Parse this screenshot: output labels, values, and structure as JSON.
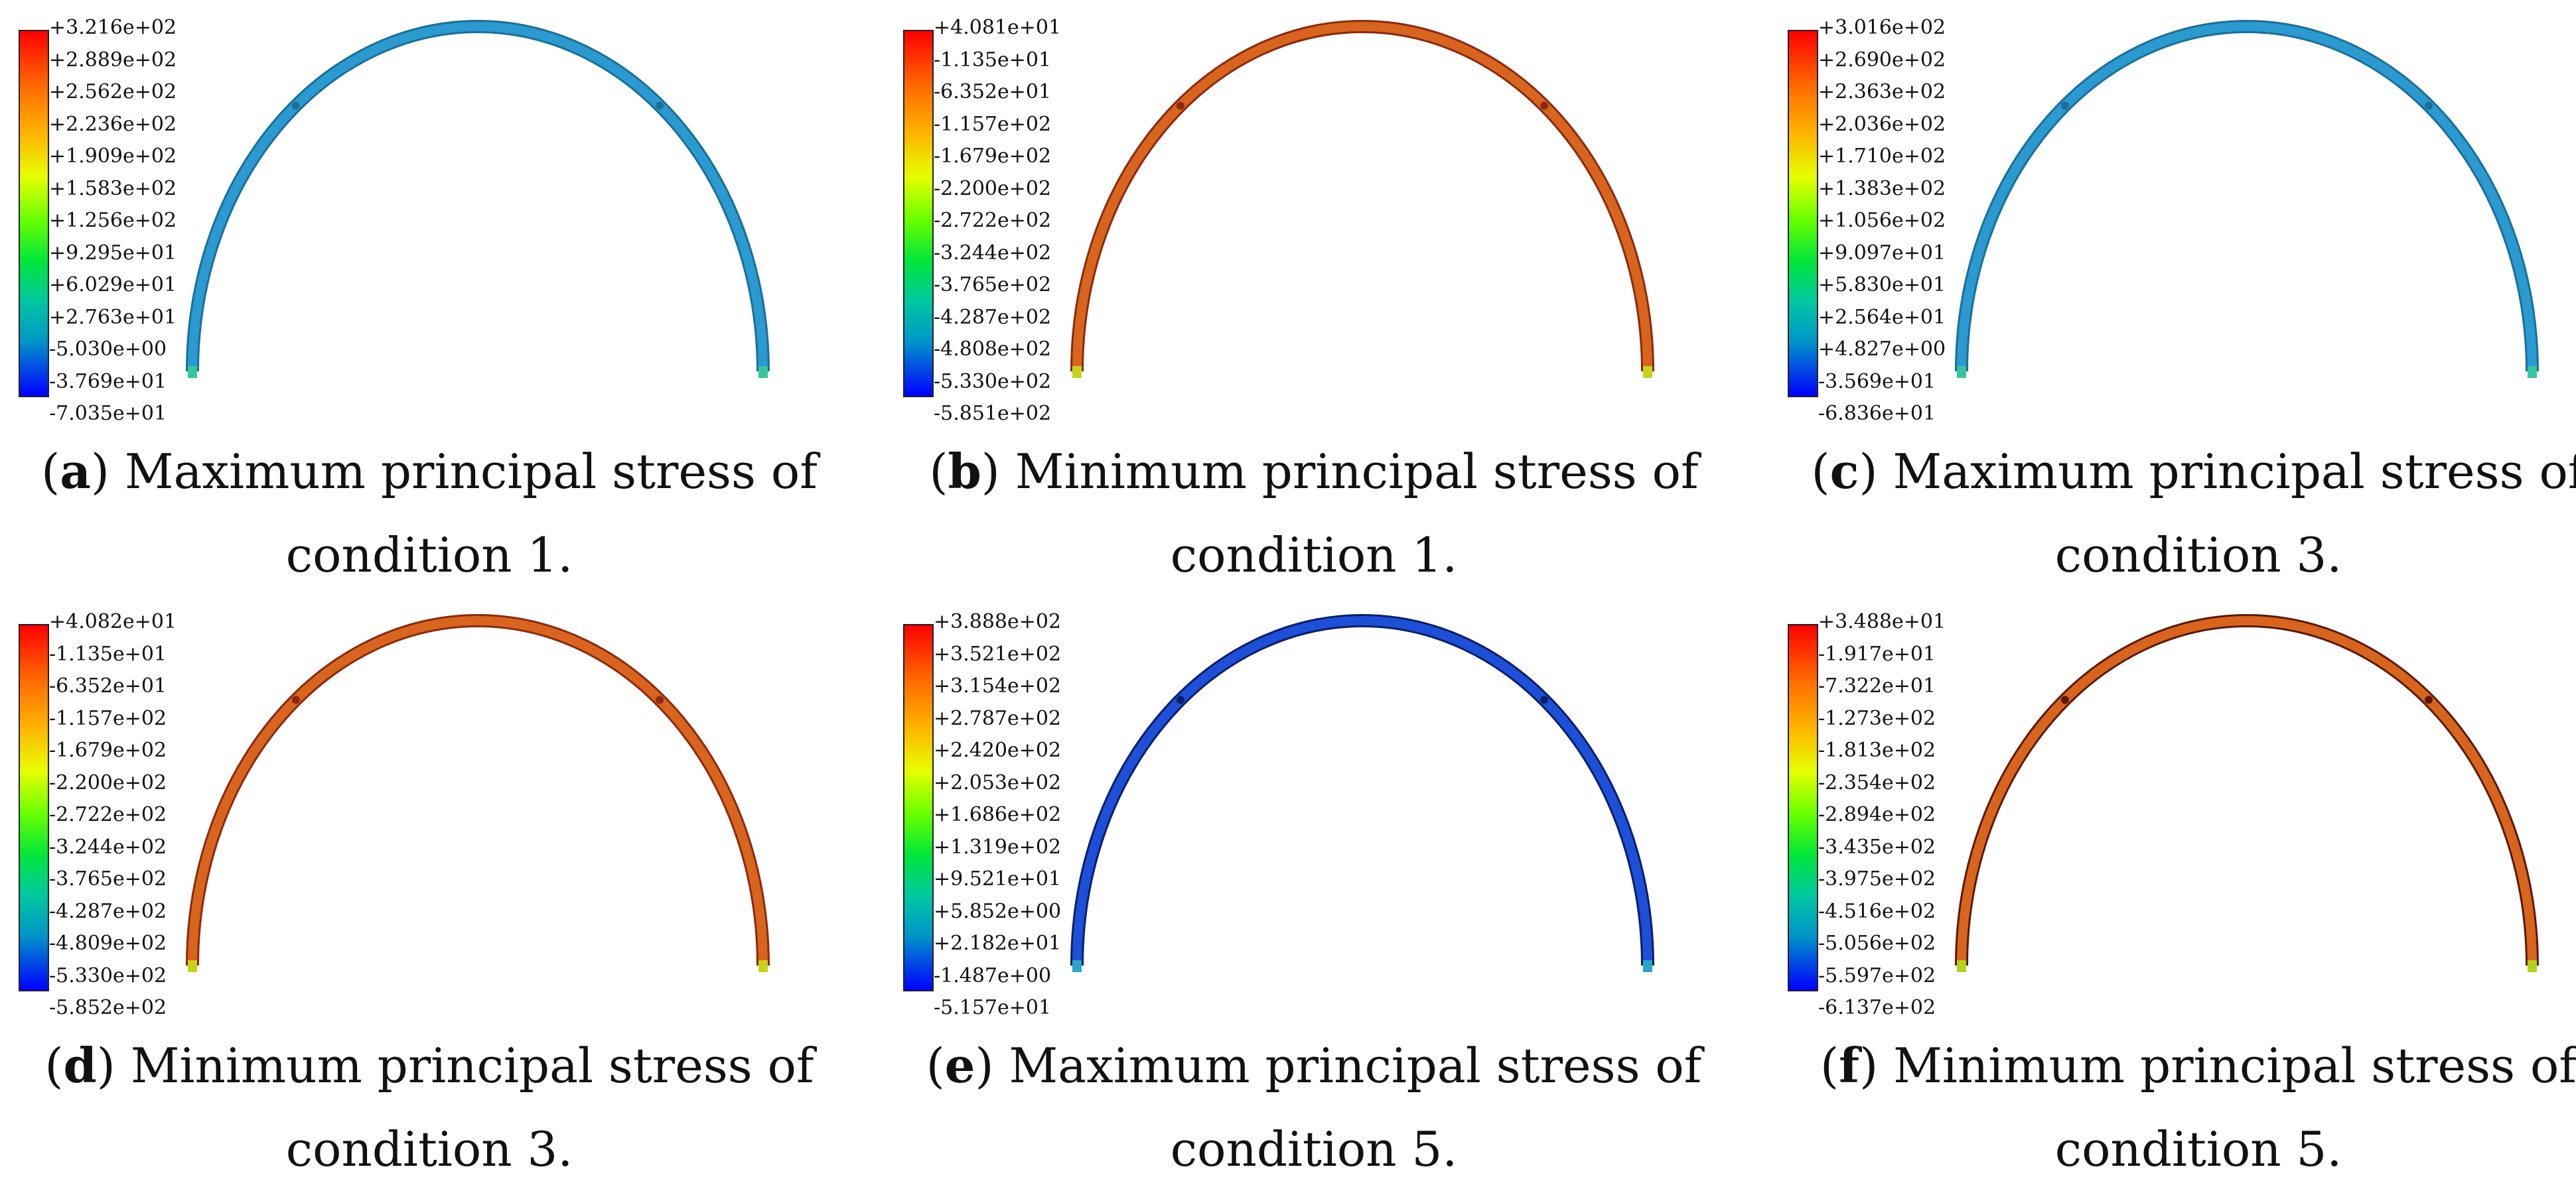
{
  "panels": [
    {
      "letter": "a",
      "caption_line1": "Maximum principal stress of",
      "caption_line2": "condition 1.",
      "legend": [
        "+3.216e+02",
        "+2.889e+02",
        "+2.562e+02",
        "+2.236e+02",
        "+1.909e+02",
        "+1.583e+02",
        "+1.256e+02",
        "+9.295e+01",
        "+6.029e+01",
        "+2.763e+01",
        "-5.030e+00",
        "-3.769e+01",
        "-7.035e+01"
      ],
      "arch_color": "#2a9ad0",
      "arch_edge": "#1b6f99",
      "foot_color": "#33c7a0"
    },
    {
      "letter": "b",
      "caption_line1": "Minimum principal stress of",
      "caption_line2": "condition 1.",
      "legend": [
        "+4.081e+01",
        "-1.135e+01",
        "-6.352e+01",
        "-1.157e+02",
        "-1.679e+02",
        "-2.200e+02",
        "-2.722e+02",
        "-3.244e+02",
        "-3.765e+02",
        "-4.287e+02",
        "-4.808e+02",
        "-5.330e+02",
        "-5.851e+02"
      ],
      "arch_color": "#d9641e",
      "arch_edge": "#8a2a10",
      "foot_color": "#c8d21a"
    },
    {
      "letter": "c",
      "caption_line1": "Maximum principal stress of",
      "caption_line2": "condition 3.",
      "legend": [
        "+3.016e+02",
        "+2.690e+02",
        "+2.363e+02",
        "+2.036e+02",
        "+1.710e+02",
        "+1.383e+02",
        "+1.056e+02",
        "+9.097e+01",
        "+5.830e+01",
        "+2.564e+01",
        "+4.827e+00",
        "-3.569e+01",
        "-6.836e+01"
      ],
      "arch_color": "#2a9ad0",
      "arch_edge": "#1b6f99",
      "foot_color": "#33c7a0"
    },
    {
      "letter": "d",
      "caption_line1": "Minimum principal stress of",
      "caption_line2": "condition 3.",
      "legend": [
        "+4.082e+01",
        "-1.135e+01",
        "-6.352e+01",
        "-1.157e+02",
        "-1.679e+02",
        "-2.200e+02",
        "-2.722e+02",
        "-3.244e+02",
        "-3.765e+02",
        "-4.287e+02",
        "-4.809e+02",
        "-5.330e+02",
        "-5.852e+02"
      ],
      "arch_color": "#d9641e",
      "arch_edge": "#8a2a10",
      "foot_color": "#c8d21a"
    },
    {
      "letter": "e",
      "caption_line1": "Maximum principal stress of",
      "caption_line2": "condition 5.",
      "legend": [
        "+3.888e+02",
        "+3.521e+02",
        "+3.154e+02",
        "+2.787e+02",
        "+2.420e+02",
        "+2.053e+02",
        "+1.686e+02",
        "+1.319e+02",
        "+9.521e+01",
        "+5.852e+00",
        "+2.182e+01",
        "-1.487e+00",
        "-5.157e+01"
      ],
      "arch_color": "#1d4fd8",
      "arch_edge": "#0a1f66",
      "foot_color": "#2aa7c8"
    },
    {
      "letter": "f",
      "caption_line1": "Minimum principal stress of",
      "caption_line2": "condition 5.",
      "legend": [
        "+3.488e+01",
        "-1.917e+01",
        "-7.322e+01",
        "-1.273e+02",
        "-1.813e+02",
        "-2.354e+02",
        "-2.894e+02",
        "-3.435e+02",
        "-3.975e+02",
        "-4.516e+02",
        "-5.056e+02",
        "-5.597e+02",
        "-6.137e+02"
      ],
      "arch_color": "#d9641e",
      "arch_edge": "#5a1a08",
      "foot_color": "#b4d21a"
    }
  ]
}
